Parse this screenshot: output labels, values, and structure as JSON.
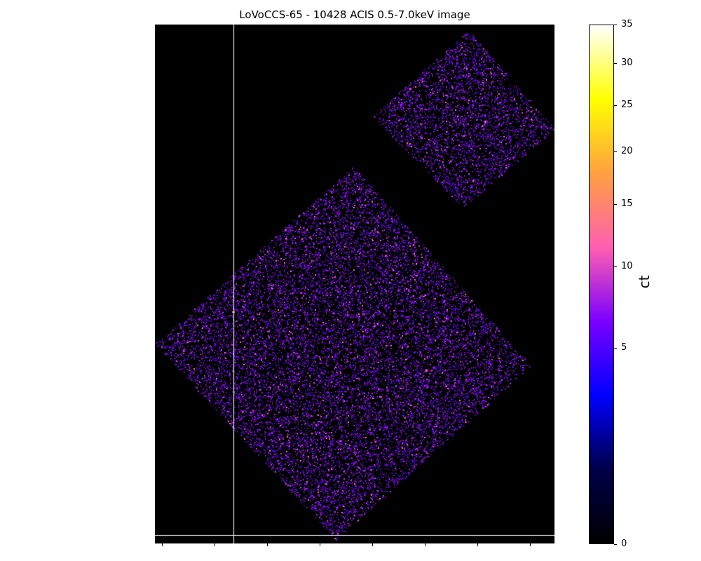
{
  "title": "LoVoCCS-65 - 10428 ACIS 0.5-7.0keV image",
  "colorbar": {
    "label": "ct",
    "max": 35,
    "ticks": [
      {
        "label": "35",
        "value": 35
      },
      {
        "label": "30",
        "value": 30
      },
      {
        "label": "25",
        "value": 25
      },
      {
        "label": "20",
        "value": 20
      },
      {
        "label": "15",
        "value": 15
      },
      {
        "label": "10",
        "value": 10
      },
      {
        "label": "5",
        "value": 5
      },
      {
        "label": "0",
        "value": 0
      }
    ],
    "colormap": [
      "#000000",
      "#00004a",
      "#0000ff",
      "#7a00ff",
      "#ff5fb0",
      "#ffa040",
      "#ffff00",
      "#ffffff"
    ]
  },
  "image": {
    "background": "#000000",
    "cursor_color": "#ffffff"
  }
}
